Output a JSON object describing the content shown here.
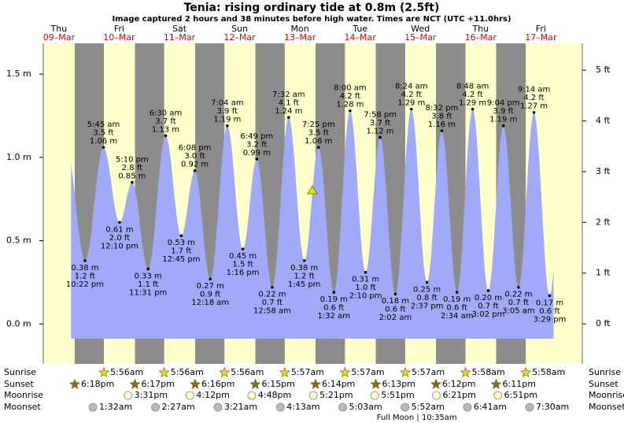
{
  "chart_data": {
    "type": "tide",
    "title": "Tenia: rising  ordinary tide at 0.8m (2.5ft)",
    "subtitle": "Image captured 2 hours and 38 minutes before high water. Times are NCT (UTC +11.0hrs)",
    "ylim": [
      -0.24,
      1.685
    ],
    "yticks": [
      {
        "value": 0,
        "label": "0.0 m"
      },
      {
        "value": 0.5,
        "label": "0.5 m"
      },
      {
        "value": 1.0,
        "label": "1.0 m"
      },
      {
        "value": 1.5,
        "label": "1.5 m"
      }
    ],
    "y2lim": [
      -0.79,
      5.53
    ],
    "y2ticks": [
      {
        "value": 0,
        "label": "0 ft"
      },
      {
        "value": 1,
        "label": "1 ft"
      },
      {
        "value": 2,
        "label": "2 ft"
      },
      {
        "value": 3,
        "label": "3 ft"
      },
      {
        "value": 4,
        "label": "4 ft"
      },
      {
        "value": 5,
        "label": "5 ft"
      }
    ],
    "colors": {
      "tide": "#a0aaf8",
      "day": "#ffffcc",
      "night": "#8c8c8c"
    },
    "row_labels": {
      "sunrise": "Sunrise",
      "sunset": "Sunset",
      "moonrise": "Moonrise",
      "moonset": "Moonset"
    },
    "days": [
      {
        "weekday": "Thu",
        "date": "09–Mar",
        "sunset": "6:18pm",
        "tides": [
          {
            "time": "10:22 pm",
            "height": 0.38,
            "height_label": "0.38 m",
            "feet_label": "1.2 ft"
          }
        ]
      },
      {
        "weekday": "Fri",
        "date": "10–Mar",
        "sunrise": "5:56am",
        "sunset": "6:17pm",
        "moonrise": "3:31pm",
        "moonset": "1:32am",
        "tides": [
          {
            "time": "5:45 am",
            "height": 1.06,
            "height_label": "1.06 m",
            "feet_label": "3.5 ft"
          },
          {
            "time": "12:10 pm",
            "height": 0.61,
            "height_label": "0.61 m",
            "feet_label": "2.0 ft"
          },
          {
            "time": "5:10 pm",
            "height": 0.85,
            "height_label": "0.85 m",
            "feet_label": "2.8 ft"
          },
          {
            "time": "11:31 pm",
            "height": 0.33,
            "height_label": "0.33 m",
            "feet_label": "1.1 ft"
          }
        ]
      },
      {
        "weekday": "Sat",
        "date": "11–Mar",
        "sunrise": "5:56am",
        "sunset": "6:16pm",
        "moonrise": "4:12pm",
        "moonset": "2:27am",
        "tides": [
          {
            "time": "6:30 am",
            "height": 1.13,
            "height_label": "1.13 m",
            "feet_label": "3.7 ft"
          },
          {
            "time": "12:45 pm",
            "height": 0.53,
            "height_label": "0.53 m",
            "feet_label": "1.7 ft"
          },
          {
            "time": "6:08 pm",
            "height": 0.92,
            "height_label": "0.92 m",
            "feet_label": "3.0 ft"
          }
        ]
      },
      {
        "weekday": "Sun",
        "date": "12–Mar",
        "sunrise": "5:56am",
        "sunset": "6:15pm",
        "moonrise": "4:48pm",
        "moonset": "3:21am",
        "tides": [
          {
            "time": "12:18 am",
            "height": 0.27,
            "height_label": "0.27 m",
            "feet_label": "0.9 ft"
          },
          {
            "time": "7:04 am",
            "height": 1.19,
            "height_label": "1.19 m",
            "feet_label": "3.9 ft"
          },
          {
            "time": "1:16 pm",
            "height": 0.45,
            "height_label": "0.45 m",
            "feet_label": "1.5 ft"
          },
          {
            "time": "6:49 pm",
            "height": 0.99,
            "height_label": "0.99 m",
            "feet_label": "3.2 ft"
          }
        ]
      },
      {
        "weekday": "Mon",
        "date": "13–Mar",
        "sunrise": "5:57am",
        "sunset": "6:14pm",
        "moonrise": "5:21pm",
        "moonset": "4:13am",
        "tides": [
          {
            "time": "12:58 am",
            "height": 0.22,
            "height_label": "0.22 m",
            "feet_label": "0.7 ft"
          },
          {
            "time": "7:32 am",
            "height": 1.24,
            "height_label": "1.24 m",
            "feet_label": "4.1 ft"
          },
          {
            "time": "1:45 pm",
            "height": 0.38,
            "height_label": "0.38 m",
            "feet_label": "1.2 ft"
          },
          {
            "time": "7:25 pm",
            "height": 1.06,
            "height_label": "1.06 m",
            "feet_label": "3.5 ft"
          }
        ]
      },
      {
        "weekday": "Tue",
        "date": "14–Mar",
        "sunrise": "5:57am",
        "sunset": "6:13pm",
        "moonrise": "5:51pm",
        "moonset": "5:03am",
        "tides": [
          {
            "time": "1:32 am",
            "height": 0.19,
            "height_label": "0.19 m",
            "feet_label": "0.6 ft"
          },
          {
            "time": "8:00 am",
            "height": 1.28,
            "height_label": "1.28 m",
            "feet_label": "4.2 ft"
          },
          {
            "time": "2:10 pm",
            "height": 0.31,
            "height_label": "0.31 m",
            "feet_label": "1.0 ft"
          },
          {
            "time": "7:58 pm",
            "height": 1.12,
            "height_label": "1.12 m",
            "feet_label": "3.7 ft"
          }
        ]
      },
      {
        "weekday": "Wed",
        "date": "15–Mar",
        "sunrise": "5:57am",
        "sunset": "6:12pm",
        "moonrise": "6:21pm",
        "moonset": "5:52am",
        "moon_phase": "Full Moon | 10:35am",
        "tides": [
          {
            "time": "2:02 am",
            "height": 0.18,
            "height_label": "0.18 m",
            "feet_label": "0.6 ft"
          },
          {
            "time": "8:24 am",
            "height": 1.29,
            "height_label": "1.29 m",
            "feet_label": "4.2 ft"
          },
          {
            "time": "2:37 pm",
            "height": 0.25,
            "height_label": "0.25 m",
            "feet_label": "0.8 ft"
          },
          {
            "time": "8:32 pm",
            "height": 1.16,
            "height_label": "1.16 m",
            "feet_label": "3.8 ft"
          }
        ]
      },
      {
        "weekday": "Thu",
        "date": "16–Mar",
        "sunrise": "5:58am",
        "sunset": "6:11pm",
        "moonrise": "6:51pm",
        "moonset": "6:41am",
        "tides": [
          {
            "time": "2:34 am",
            "height": 0.19,
            "height_label": "0.19 m",
            "feet_label": "0.6 ft"
          },
          {
            "time": "8:48 am",
            "height": 1.29,
            "height_label": "1.29 m",
            "feet_label": "4.2 ft"
          },
          {
            "time": "3:02 pm",
            "height": 0.2,
            "height_label": "0.20 m",
            "feet_label": "0.7 ft"
          },
          {
            "time": "9:04 pm",
            "height": 1.19,
            "height_label": "1.19 m",
            "feet_label": "3.9 ft"
          }
        ]
      },
      {
        "weekday": "Fri",
        "date": "17–Mar",
        "sunrise": "5:58am",
        "moonset": "7:30am",
        "tides": [
          {
            "time": "3:05 am",
            "height": 0.22,
            "height_label": "0.22 m",
            "feet_label": "0.7 ft"
          },
          {
            "time": "9:14 am",
            "height": 1.27,
            "height_label": "1.27 m",
            "feet_label": "4.2 ft"
          },
          {
            "time": "3:29 pm",
            "height": 0.17,
            "height_label": "0.17 m",
            "feet_label": "0.6 ft"
          }
        ]
      }
    ]
  }
}
